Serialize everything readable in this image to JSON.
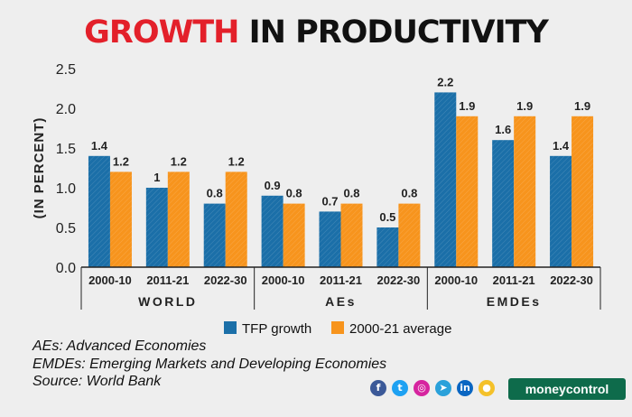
{
  "header": {
    "title_part1": "GROWTH",
    "title_part2": "IN PRODUCTIVITY"
  },
  "chart_data": {
    "type": "bar",
    "title": "GROWTH IN PRODUCTIVITY",
    "ylabel": "(IN PERCENT)",
    "xlabel": "",
    "ylim": [
      0,
      2.5
    ],
    "yticks": [
      "0.0",
      "0.5",
      "1.0",
      "1.5",
      "2.0",
      "2.5"
    ],
    "groups": [
      {
        "name": "WORLD",
        "categories": [
          "2000-10",
          "2011-21",
          "2022-30"
        ]
      },
      {
        "name": "AEs",
        "categories": [
          "2000-10",
          "2011-21",
          "2022-30"
        ]
      },
      {
        "name": "EMDEs",
        "categories": [
          "2000-10",
          "2011-21",
          "2022-30"
        ]
      }
    ],
    "series": [
      {
        "name": "TFP growth",
        "color": "#1b6fa8",
        "values": [
          1.4,
          1.0,
          0.8,
          0.9,
          0.7,
          0.5,
          2.2,
          1.6,
          1.4
        ],
        "labels": [
          "1.4",
          "1",
          "0.8",
          "0.9",
          "0.7",
          "0.5",
          "2.2",
          "1.6",
          "1.4"
        ]
      },
      {
        "name": "2000-21 average",
        "color": "#f7941d",
        "values": [
          1.2,
          1.2,
          1.2,
          0.8,
          0.8,
          0.8,
          1.9,
          1.9,
          1.9
        ],
        "labels": [
          "1.2",
          "1.2",
          "1.2",
          "0.8",
          "0.8",
          "0.8",
          "1.9",
          "1.9",
          "1.9"
        ]
      }
    ],
    "legend_position": "bottom-center"
  },
  "notes": {
    "line1": "AEs: Advanced Economies",
    "line2": "EMDEs: Emerging Markets and Developing Economies",
    "line3": "Source: World Bank"
  },
  "social": [
    {
      "icon": "facebook-icon",
      "glyph": "f",
      "color": "#3b5998"
    },
    {
      "icon": "twitter-icon",
      "glyph": "t",
      "color": "#1da1f2"
    },
    {
      "icon": "instagram-icon",
      "glyph": "◎",
      "color": "#d6249f"
    },
    {
      "icon": "telegram-icon",
      "glyph": "➤",
      "color": "#2aa1da"
    },
    {
      "icon": "linkedin-icon",
      "glyph": "in",
      "color": "#0a66c2"
    },
    {
      "icon": "koo-icon",
      "glyph": "●",
      "color": "#f4c12a"
    }
  ],
  "brand": {
    "name": "moneycontrol"
  }
}
